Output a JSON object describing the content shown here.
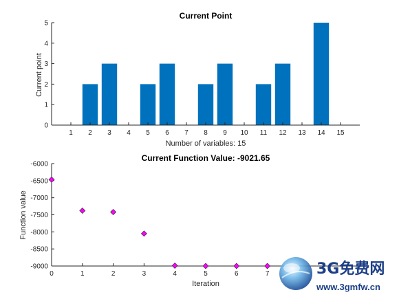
{
  "chart_data": [
    {
      "type": "bar",
      "title": "Current Point",
      "xlabel": "Number of variables: 15",
      "ylabel": "Current point",
      "categories": [
        "1",
        "2",
        "3",
        "4",
        "5",
        "6",
        "7",
        "8",
        "9",
        "10",
        "11",
        "12",
        "13",
        "14",
        "15"
      ],
      "values": [
        0,
        2,
        3,
        0,
        2,
        3,
        0,
        2,
        3,
        0,
        2,
        3,
        0,
        5,
        0
      ],
      "ylim": [
        0,
        5
      ],
      "yticks": [
        0,
        1,
        2,
        3,
        4,
        5
      ],
      "bar_color": "#0072bd"
    },
    {
      "type": "scatter",
      "title": "Current Function Value: -9021.65",
      "xlabel": "Iteration",
      "ylabel": "Function value",
      "x": [
        0,
        1,
        2,
        3,
        4,
        5,
        6,
        7
      ],
      "y": [
        -6470,
        -7380,
        -7420,
        -8050,
        -8990,
        -9010,
        -9015,
        -9021.65
      ],
      "xlim": [
        0,
        10
      ],
      "xticks": [
        0,
        1,
        2,
        3,
        4,
        5,
        6,
        7
      ],
      "ylim": [
        -9000,
        -6000
      ],
      "yticks": [
        -6000,
        -6500,
        -7000,
        -7500,
        -8000,
        -8500,
        -9000
      ],
      "marker": "diamond",
      "marker_color": "#ff00ff"
    }
  ],
  "watermark": {
    "title": "3G免费网",
    "url": "www.3gmfw.cn"
  }
}
